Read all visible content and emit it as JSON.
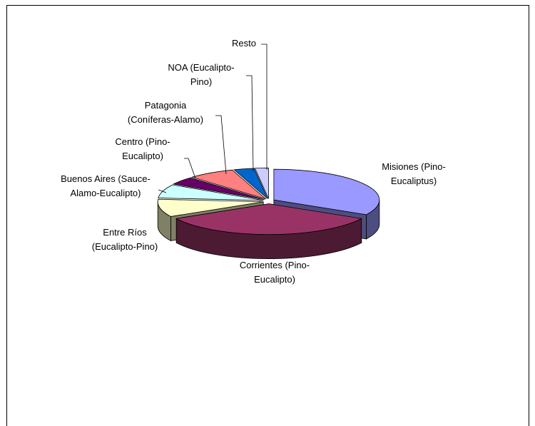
{
  "chart_data": {
    "type": "pie",
    "title": "",
    "style": "3d-exploded",
    "start_angle_deg": 0,
    "direction": "clockwise",
    "categories": [
      "Misiones (Pino-Eucaliptus)",
      "Corrientes (Pino-Eucalipto)",
      "Entre Ríos (Eucalipto-Pino)",
      "Buenos Aires (Sauce-Alamo-Eucalipto)",
      "Centro (Pino-Eucalipto)",
      "Patagonia (Coníferas-Alamo)",
      "NOA (Eucalipto-Pino)",
      "Resto"
    ],
    "values": [
      32,
      33,
      9,
      7,
      4,
      7,
      3,
      2
    ],
    "labels": [
      [
        "Misiones (Pino-",
        "Eucaliptus)"
      ],
      [
        "Corrientes (Pino-",
        "Eucalipto)"
      ],
      [
        "Entre Ríos",
        "(Eucalipto-Pino)"
      ],
      [
        "Buenos Aires (Sauce-",
        "Alamo-Eucalipto)"
      ],
      [
        "Centro (Pino-",
        "Eucalipto)"
      ],
      [
        "Patagonia",
        "(Coníferas-Alamo)"
      ],
      [
        "NOA (Eucalipto-",
        "Pino)"
      ],
      [
        "Resto"
      ]
    ],
    "colors": [
      "#9999ff",
      "#993366",
      "#ffffcc",
      "#ccffff",
      "#660066",
      "#ff8080",
      "#0066cc",
      "#ccccff"
    ],
    "side_colors": [
      "#4d4d80",
      "#4d1a33",
      "#808066",
      "#668080",
      "#330033",
      "#804040",
      "#003366",
      "#666680"
    ],
    "legend": "none"
  }
}
